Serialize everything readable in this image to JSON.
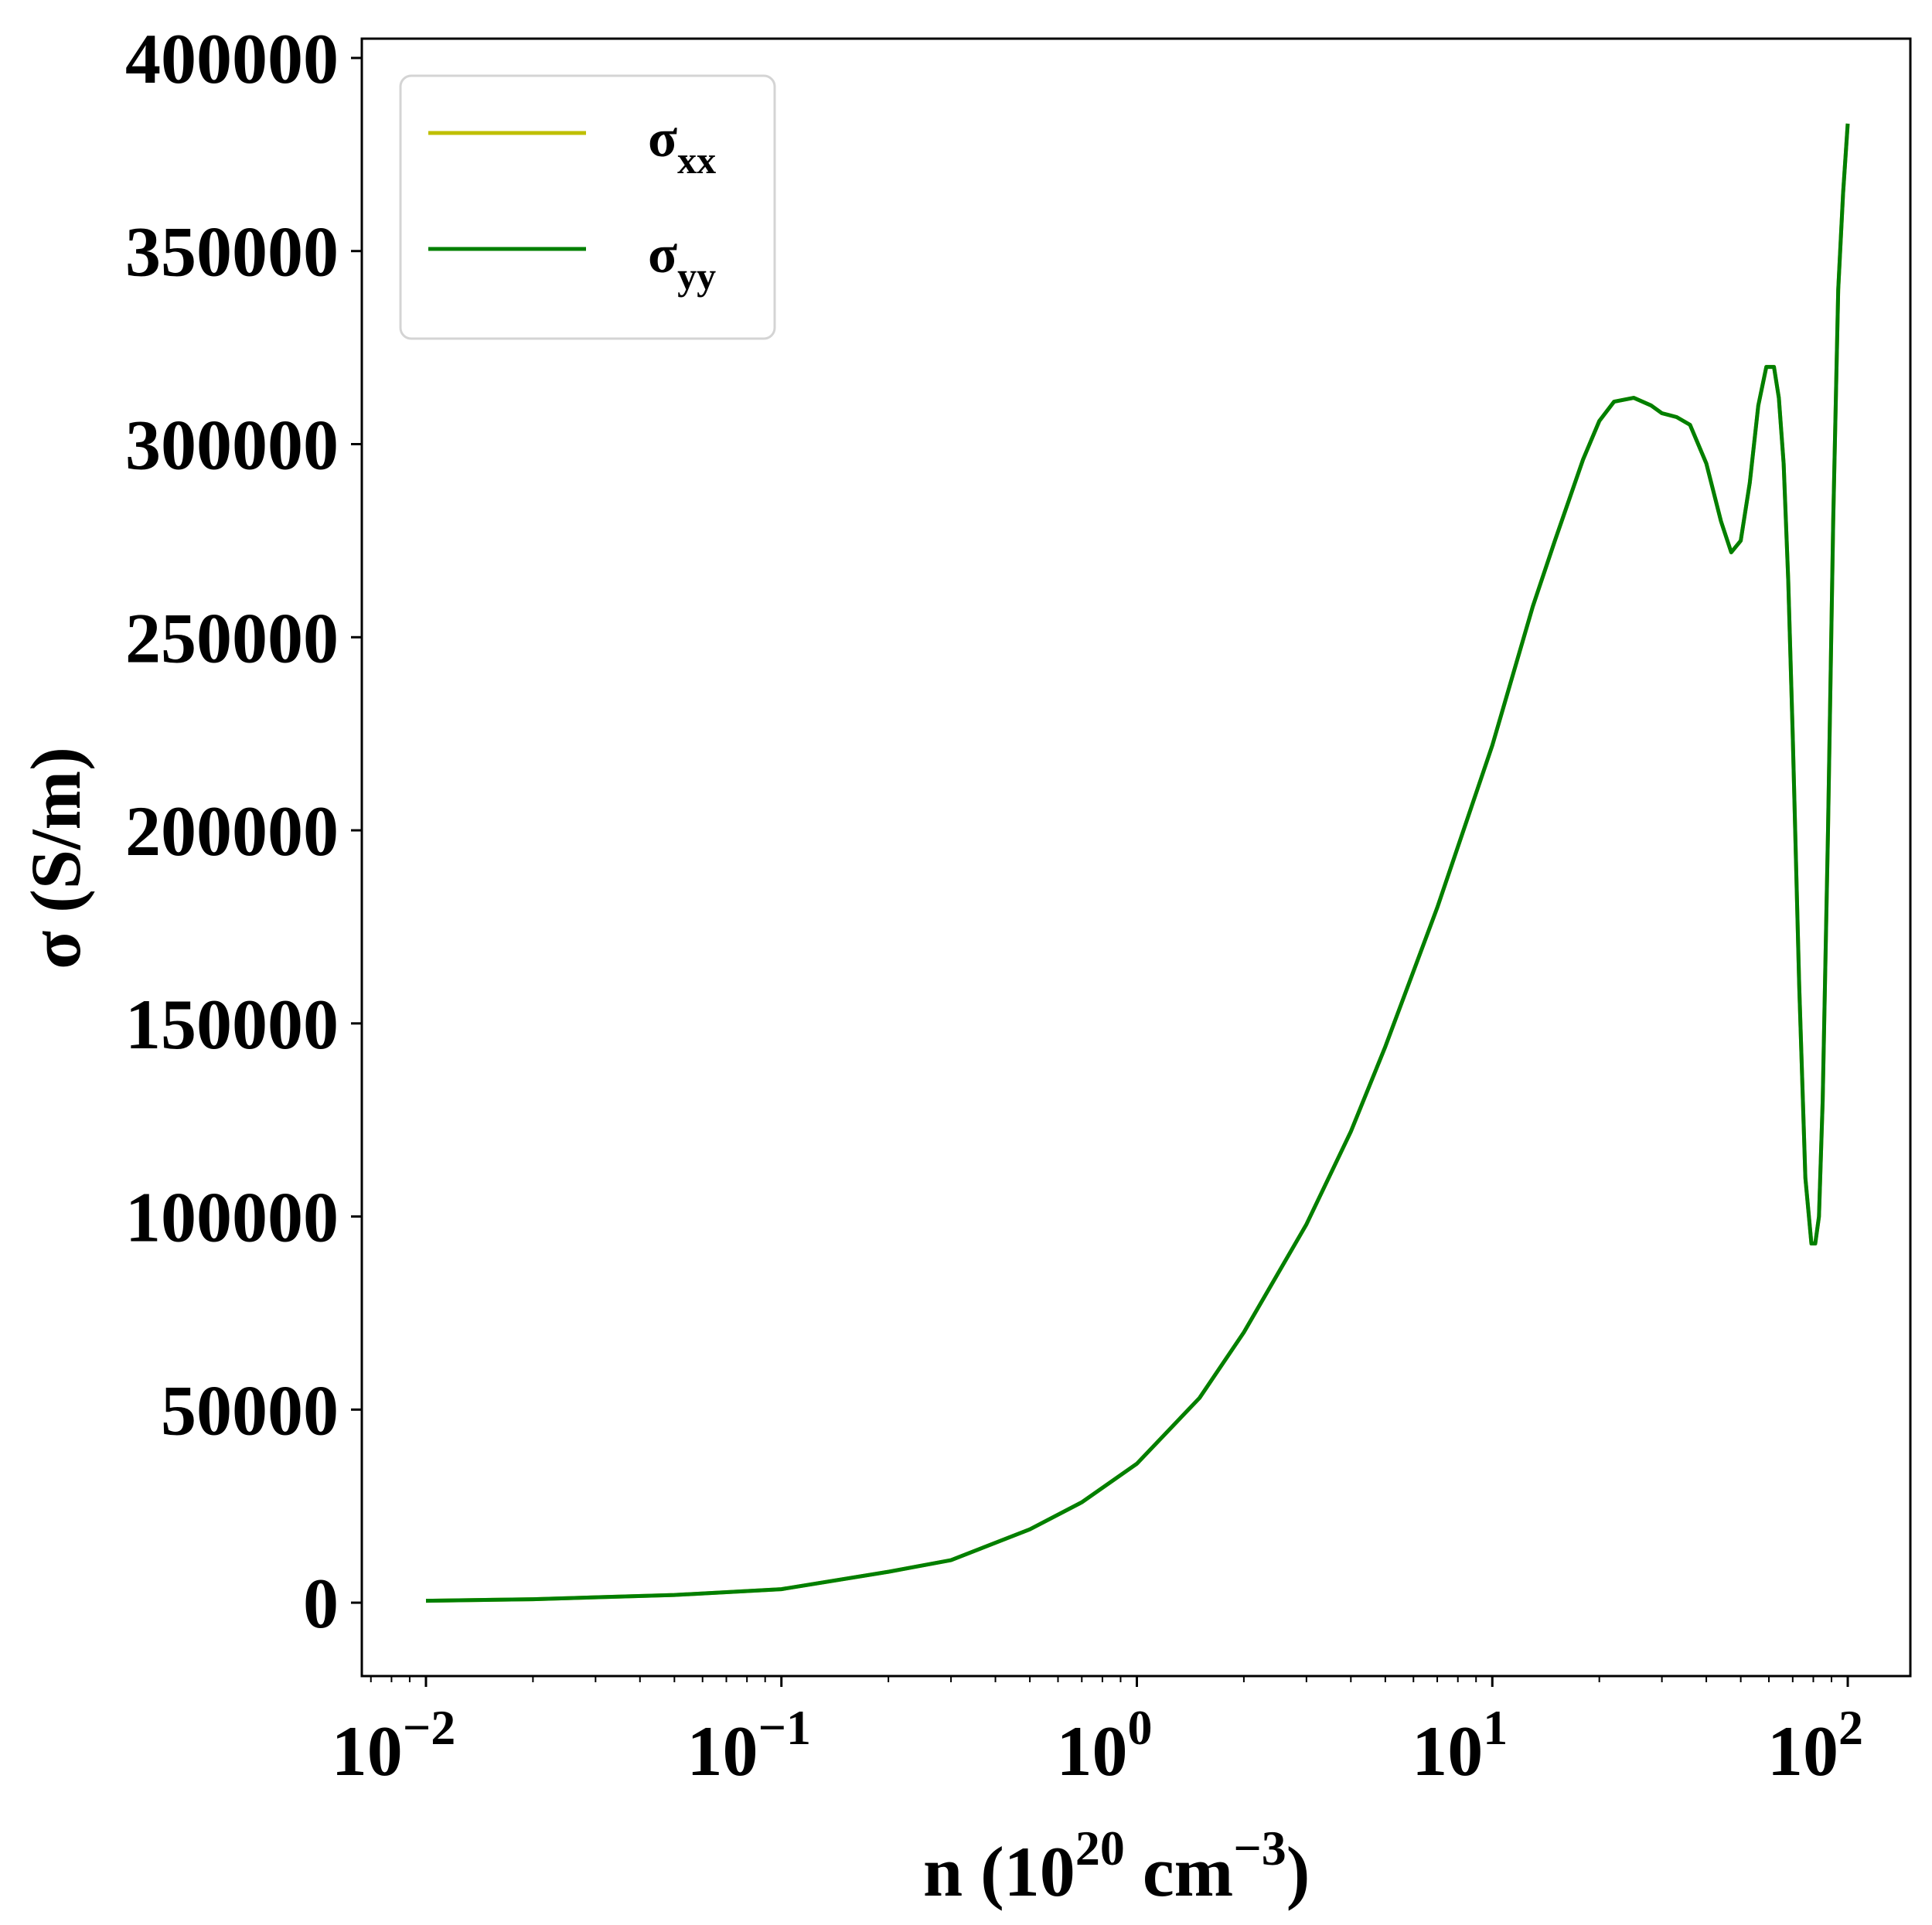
{
  "chart_data": {
    "type": "line",
    "title": "",
    "xlabel": "n (10^20 cm^-3)",
    "xlabel_parts": {
      "prefix": "n (10",
      "sup1": "20",
      "mid": " cm",
      "sup2": "−3",
      "suffix": ")"
    },
    "ylabel": "σ (S/m)",
    "xscale": "log",
    "xlim": [
      0.0066,
      150
    ],
    "ylim": [
      -19000,
      405000
    ],
    "x_ticks": [
      {
        "base": "10",
        "exp": "−2",
        "value": 0.01
      },
      {
        "base": "10",
        "exp": "−1",
        "value": 0.1
      },
      {
        "base": "10",
        "exp": "0",
        "value": 1
      },
      {
        "base": "10",
        "exp": "1",
        "value": 10
      },
      {
        "base": "10",
        "exp": "2",
        "value": 100
      }
    ],
    "y_ticks": [
      0,
      50000,
      100000,
      150000,
      200000,
      250000,
      300000,
      350000,
      400000
    ],
    "y_tick_labels": [
      "0",
      "50000",
      "100000",
      "150000",
      "200000",
      "250000",
      "300000",
      "350000",
      "400000"
    ],
    "legend": {
      "placement": "top-left"
    },
    "series": [
      {
        "name": "σxx",
        "label_base": "σ",
        "label_sub": "xx",
        "color": "#bfbf00",
        "x": [
          0.01,
          0.02,
          0.05,
          0.1,
          0.2,
          0.3,
          0.5,
          0.7,
          1,
          1.5,
          2,
          3,
          4,
          5,
          7,
          10,
          13,
          15,
          18,
          20,
          22,
          25,
          28,
          30,
          33,
          36,
          40,
          44,
          47,
          50,
          53,
          56,
          59,
          62,
          64,
          66,
          68,
          70,
          73,
          76,
          79,
          81,
          83,
          85,
          88,
          91,
          94,
          97,
          100
        ],
        "y": [
          500,
          900,
          2000,
          3500,
          8000,
          11000,
          19000,
          26000,
          36000,
          53000,
          70000,
          98000,
          122000,
          144000,
          180000,
          222000,
          258000,
          275000,
          296000,
          306000,
          311000,
          312000,
          310000,
          308000,
          307000,
          305000,
          295000,
          280000,
          272000,
          275000,
          290000,
          310000,
          320000,
          320000,
          312000,
          295000,
          265000,
          225000,
          160000,
          110000,
          93000,
          93000,
          100000,
          130000,
          200000,
          280000,
          340000,
          365000,
          383000
        ]
      },
      {
        "name": "σyy",
        "label_base": "σ",
        "label_sub": "yy",
        "color": "#007f00",
        "x": [
          0.01,
          0.02,
          0.05,
          0.1,
          0.2,
          0.3,
          0.5,
          0.7,
          1,
          1.5,
          2,
          3,
          4,
          5,
          7,
          10,
          13,
          15,
          18,
          20,
          22,
          25,
          28,
          30,
          33,
          36,
          40,
          44,
          47,
          50,
          53,
          56,
          59,
          62,
          64,
          66,
          68,
          70,
          73,
          76,
          79,
          81,
          83,
          85,
          88,
          91,
          94,
          97,
          100
        ],
        "y": [
          500,
          900,
          2000,
          3500,
          8000,
          11000,
          19000,
          26000,
          36000,
          53000,
          70000,
          98000,
          122000,
          144000,
          180000,
          222000,
          258000,
          275000,
          296000,
          306000,
          311000,
          312000,
          310000,
          308000,
          307000,
          305000,
          295000,
          280000,
          272000,
          275000,
          290000,
          310000,
          320000,
          320000,
          312000,
          295000,
          265000,
          225000,
          160000,
          110000,
          93000,
          93000,
          100000,
          130000,
          200000,
          280000,
          340000,
          365000,
          383000
        ]
      }
    ]
  }
}
